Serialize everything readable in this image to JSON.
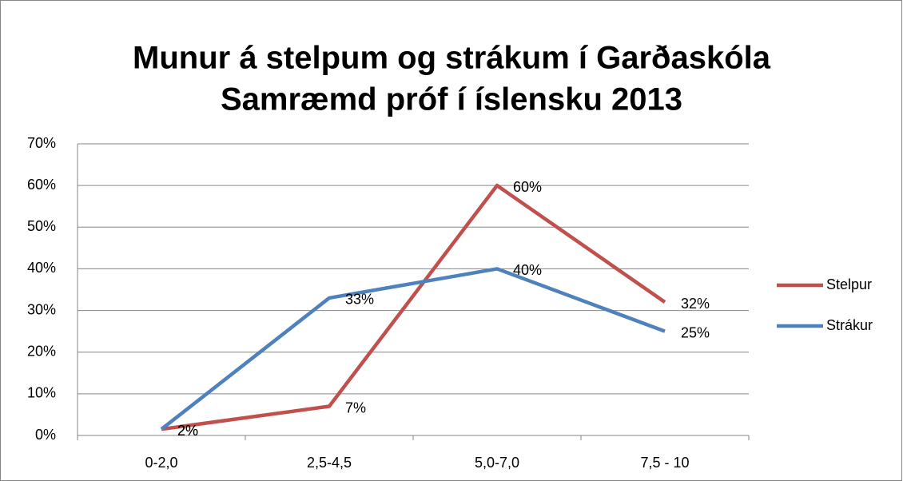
{
  "chart_data": {
    "type": "line",
    "title": [
      "Munur á stelpum og strákum í Garðaskóla",
      "Samræmd próf í íslensku 2013"
    ],
    "categories": [
      "0-2,0",
      "2,5-4,5",
      "5,0-7,0",
      "7,5 - 10"
    ],
    "series": [
      {
        "name": "Stelpur",
        "color": "#c0504d",
        "values": [
          1.5,
          7,
          60,
          32
        ],
        "value_labels": [
          "2%",
          "7%",
          "60%",
          "32%"
        ]
      },
      {
        "name": "Strákur",
        "color": "#4f81bd",
        "values": [
          1.5,
          33,
          40,
          25
        ],
        "value_labels": [
          "2%",
          "33%",
          "40%",
          "25%"
        ]
      }
    ],
    "ylim": [
      0,
      70
    ],
    "yticks": [
      {
        "value": 0,
        "label": "0%"
      },
      {
        "value": 10,
        "label": "10%"
      },
      {
        "value": 20,
        "label": "20%"
      },
      {
        "value": 30,
        "label": "30%"
      },
      {
        "value": 40,
        "label": "40%"
      },
      {
        "value": 50,
        "label": "50%"
      },
      {
        "value": 60,
        "label": "60%"
      },
      {
        "value": 70,
        "label": "70%"
      }
    ],
    "grid": true,
    "legend": "right"
  }
}
